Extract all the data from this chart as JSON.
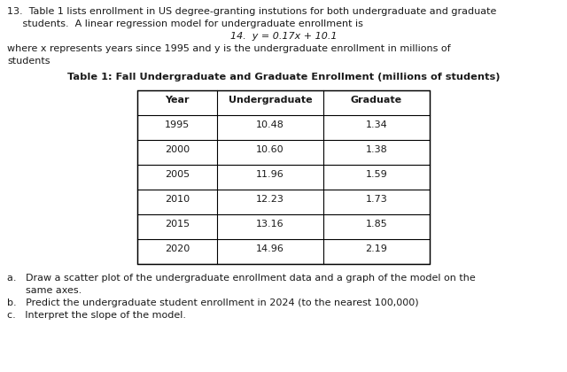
{
  "intro_line1": "13.  Table 1 lists enrollment in US degree-granting instutions for both undergraduate and graduate",
  "intro_line2": "     students.  A linear regression model for undergraduate enrollment is",
  "equation": "14.  y = 0.17x + 10.1",
  "where_text": "where x represents years since 1995 and y is the undergraduate enrollment in millions of",
  "where_text2": "students",
  "table_title": "Table 1: Fall Undergraduate and Graduate Enrollment (millions of students)",
  "col_headers": [
    "Year",
    "Undergraduate",
    "Graduate"
  ],
  "table_data": [
    [
      "1995",
      "10.48",
      "1.34"
    ],
    [
      "2000",
      "10.60",
      "1.38"
    ],
    [
      "2005",
      "11.96",
      "1.59"
    ],
    [
      "2010",
      "12.23",
      "1.73"
    ],
    [
      "2015",
      "13.16",
      "1.85"
    ],
    [
      "2020",
      "14.96",
      "2.19"
    ]
  ],
  "part_a": "a.   Draw a scatter plot of the undergraduate enrollment data and a graph of the model on the",
  "part_a2": "      same axes.",
  "part_b": "b.   Predict the undergraduate student enrollment in 2024 (to the nearest 100,000)",
  "part_c": "c.   Interpret the slope of the model.",
  "bg_color": "#ffffff",
  "text_color": "#1a1a1a",
  "font_size_body": 8.0,
  "font_size_table": 8.0,
  "font_size_title": 8.2
}
